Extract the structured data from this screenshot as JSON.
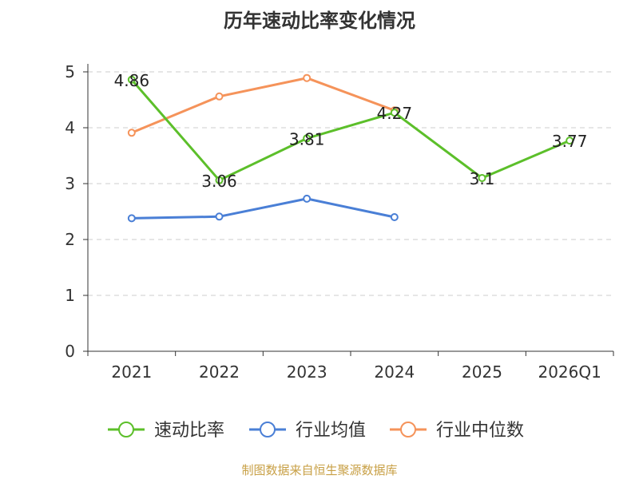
{
  "chart_data": {
    "type": "line",
    "title": "历年速动比率变化情况",
    "categories": [
      "2021",
      "2022",
      "2023",
      "2024",
      "2025",
      "2026Q1"
    ],
    "ylim": [
      0,
      5
    ],
    "yticks": [
      "0",
      "1",
      "2",
      "3",
      "4",
      "5"
    ],
    "grid": true,
    "legend_position": "bottom",
    "series": [
      {
        "name": "速动比率",
        "color": "#5cbf2a",
        "values": [
          4.86,
          3.06,
          3.81,
          4.27,
          3.1,
          3.77
        ],
        "show_labels": true
      },
      {
        "name": "行业均值",
        "color": "#4a7fd6",
        "values": [
          2.38,
          2.41,
          2.73,
          2.4,
          null,
          null
        ],
        "show_labels": false
      },
      {
        "name": "行业中位数",
        "color": "#f5935a",
        "values": [
          3.91,
          4.56,
          4.89,
          4.31,
          null,
          null
        ],
        "show_labels": false
      }
    ],
    "data_labels": [
      "4.86",
      "3.06",
      "3.81",
      "4.27",
      "3.1",
      "3.77"
    ]
  },
  "footer": {
    "source": "制图数据来自恒生聚源数据库"
  }
}
